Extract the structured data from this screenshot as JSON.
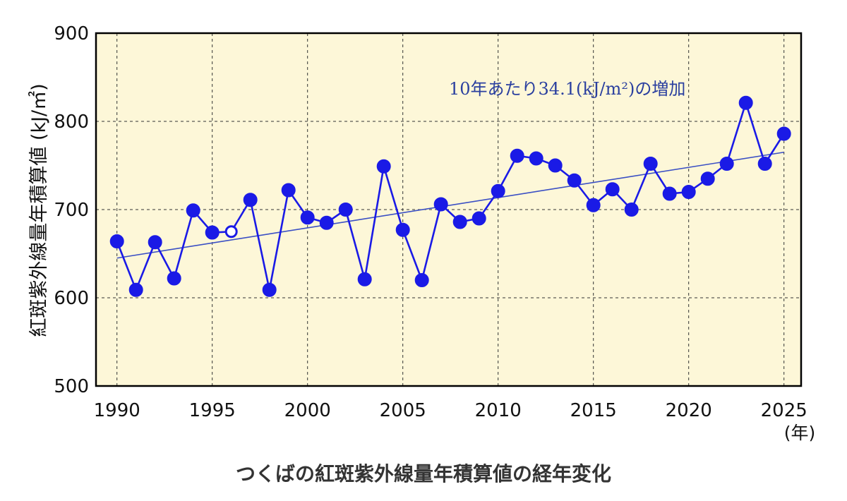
{
  "caption": "つくばの紅斑紫外線量年積算値の経年変化",
  "chart_data": {
    "type": "line",
    "ylabel": "紅斑紫外線量年積算値 (kJ/㎡)",
    "xunit": "(年)",
    "ylim": [
      500,
      900
    ],
    "xlim": [
      1990,
      2025
    ],
    "yticks": [
      500,
      600,
      700,
      800,
      900
    ],
    "xticks": [
      1990,
      1995,
      2000,
      2005,
      2010,
      2015,
      2020,
      2025
    ],
    "grid": true,
    "plot_bg": "#fdf7d8",
    "line_color": "#1a1ae6",
    "trend_color": "#3a4fc4",
    "annotation_color": "#2a3f9f",
    "annotation": "10年あたり34.1(kJ/m²)の増加",
    "series": [
      {
        "x": [
          1990,
          1991,
          1992,
          1993,
          1994,
          1995,
          1996,
          1997,
          1998,
          1999,
          2000,
          2001,
          2002,
          2003,
          2004,
          2005,
          2006,
          2007,
          2008,
          2009,
          2010,
          2011,
          2012,
          2013,
          2014,
          2015,
          2016,
          2017,
          2018,
          2019,
          2020,
          2021,
          2022,
          2023,
          2024,
          2025
        ],
        "values": [
          664,
          609,
          663,
          622,
          699,
          674,
          675,
          711,
          609,
          722,
          691,
          685,
          700,
          621,
          749,
          677,
          620,
          706,
          686,
          690,
          721,
          761,
          758,
          750,
          733,
          705,
          723,
          700,
          752,
          718,
          720,
          735,
          752,
          821,
          752,
          786
        ],
        "open_markers": [
          1996
        ]
      }
    ],
    "trend": {
      "x": [
        1990,
        2025
      ],
      "y": [
        645,
        765
      ]
    }
  }
}
